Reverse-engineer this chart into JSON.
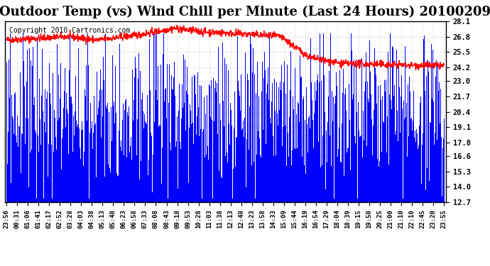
{
  "title": "Outdoor Temp (vs) Wind Chill per Minute (Last 24 Hours) 20100209",
  "copyright": "Copyright 2010 Cartronics.com",
  "yticks": [
    12.7,
    14.0,
    15.3,
    16.6,
    17.8,
    19.1,
    20.4,
    21.7,
    23.0,
    24.2,
    25.5,
    26.8,
    28.1
  ],
  "ymin": 12.7,
  "ymax": 28.1,
  "bar_color": "#0000ff",
  "line_color": "#ff0000",
  "background_color": "#ffffff",
  "grid_color": "#aaaaaa",
  "title_fontsize": 13,
  "copyright_fontsize": 7,
  "n_points": 1440,
  "x_tick_labels": [
    "23:56",
    "00:31",
    "01:06",
    "01:41",
    "02:17",
    "02:52",
    "03:28",
    "04:03",
    "04:38",
    "05:13",
    "05:48",
    "06:23",
    "06:58",
    "07:33",
    "08:08",
    "08:43",
    "09:18",
    "09:53",
    "10:28",
    "11:03",
    "11:38",
    "12:13",
    "12:48",
    "13:23",
    "13:58",
    "14:33",
    "15:09",
    "15:44",
    "16:19",
    "16:54",
    "17:29",
    "18:04",
    "18:39",
    "19:15",
    "19:50",
    "20:25",
    "21:00",
    "21:10",
    "22:10",
    "22:45",
    "23:20",
    "23:55"
  ]
}
